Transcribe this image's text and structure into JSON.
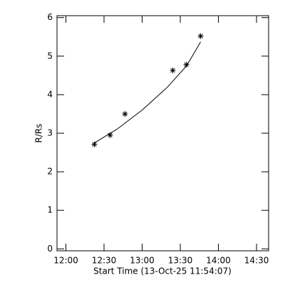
{
  "chart_data": {
    "type": "scatter",
    "xlabel": "Start Time (13-Oct-25 11:54:07)",
    "ylabel": "R/Rs",
    "x": [
      742.4,
      754.8,
      766.5,
      804.1,
      814.8,
      826.0
    ],
    "values": [
      2.71,
      2.95,
      3.5,
      4.63,
      4.78,
      5.52
    ],
    "fit": {
      "x": [
        742.4,
        760,
        780,
        800,
        815,
        826
      ],
      "values": [
        2.75,
        3.1,
        3.6,
        4.2,
        4.75,
        5.37
      ]
    },
    "color": "#000000",
    "xlim": [
      713,
      879.5
    ],
    "xticks": [
      {
        "value": 720,
        "label": "12:00"
      },
      {
        "value": 750,
        "label": "12:30"
      },
      {
        "value": 780,
        "label": "13:00"
      },
      {
        "value": 810,
        "label": "13:30"
      },
      {
        "value": 840,
        "label": "14:00"
      },
      {
        "value": 870,
        "label": "14:30"
      }
    ],
    "ylim": [
      -0.05,
      6.05
    ],
    "yticks": [
      0,
      1,
      2,
      3,
      4,
      5,
      6
    ]
  }
}
